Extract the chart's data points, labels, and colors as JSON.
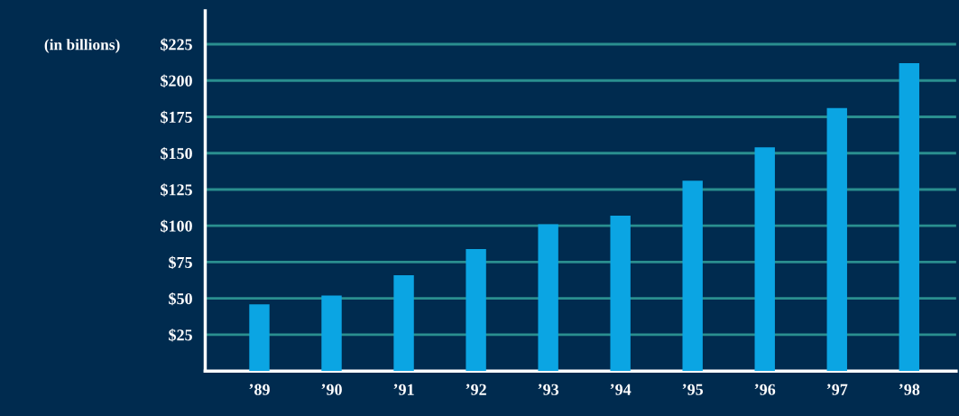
{
  "chart_data": {
    "type": "bar",
    "ylabel": "(in billions)",
    "categories": [
      "’89",
      "’90",
      "’91",
      "’92",
      "’93",
      "’94",
      "’95",
      "’96",
      "’97",
      "’98"
    ],
    "values": [
      46,
      52,
      66,
      84,
      101,
      107,
      131,
      154,
      181,
      212
    ],
    "color": "#0ba5e3",
    "ylim": [
      0,
      248
    ],
    "yticks": [
      {
        "value": 25,
        "label": "$25"
      },
      {
        "value": 50,
        "label": "$50"
      },
      {
        "value": 75,
        "label": "$75"
      },
      {
        "value": 100,
        "label": "$100"
      },
      {
        "value": 125,
        "label": "$125"
      },
      {
        "value": 150,
        "label": "$150"
      },
      {
        "value": 175,
        "label": "$175"
      },
      {
        "value": 200,
        "label": "$200"
      },
      {
        "value": 225,
        "label": "$225"
      }
    ],
    "grid": "y"
  }
}
